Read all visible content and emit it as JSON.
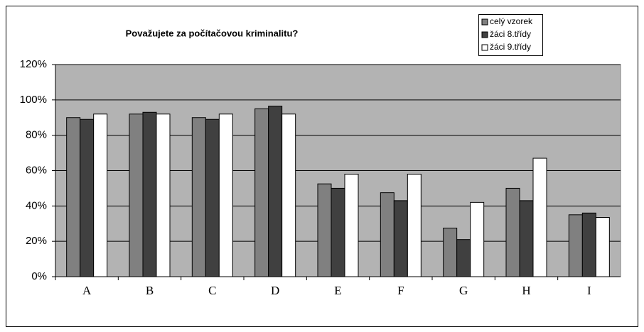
{
  "chart_data": {
    "type": "bar",
    "title": "Považujete za počítačovou kriminalitu?",
    "categories": [
      "A",
      "B",
      "C",
      "D",
      "E",
      "F",
      "G",
      "H",
      "I"
    ],
    "series": [
      {
        "name": "celý vzorek",
        "color": "#808080",
        "values": [
          90,
          92,
          90,
          95,
          52.5,
          47.5,
          27.5,
          50,
          35
        ]
      },
      {
        "name": "žáci 8.třídy",
        "color": "#404040",
        "values": [
          89,
          93,
          89,
          96.5,
          50,
          43,
          21,
          43,
          36
        ]
      },
      {
        "name": "žáci 9.třídy",
        "color": "#ffffff",
        "values": [
          92,
          92,
          92,
          92,
          58,
          58,
          42,
          67,
          33.5
        ]
      }
    ],
    "ylim": [
      0,
      120
    ],
    "yticks": [
      {
        "value": 0,
        "label": "0%"
      },
      {
        "value": 20,
        "label": "20%"
      },
      {
        "value": 40,
        "label": "40%"
      },
      {
        "value": 60,
        "label": "60%"
      },
      {
        "value": 80,
        "label": "80%"
      },
      {
        "value": 100,
        "label": "100%"
      },
      {
        "value": 120,
        "label": "120%"
      }
    ],
    "grid": true,
    "legend": "top-right"
  }
}
